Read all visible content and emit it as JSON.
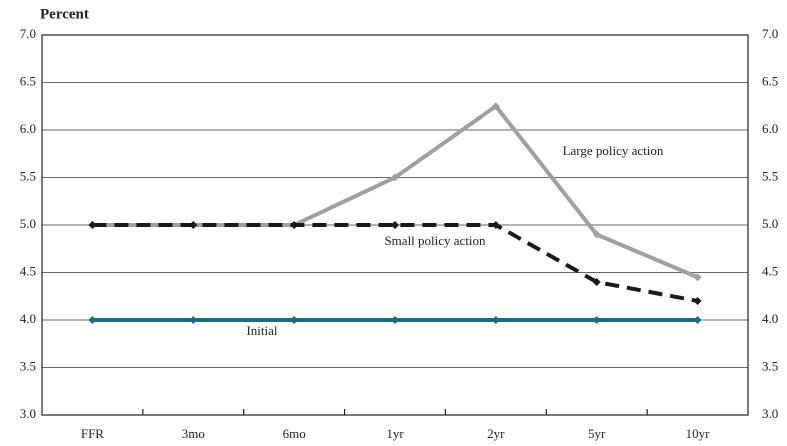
{
  "chart_data": {
    "type": "line",
    "y_label": "Percent",
    "categories": [
      "FFR",
      "3mo",
      "6mo",
      "1yr",
      "2yr",
      "5yr",
      "10yr"
    ],
    "series": [
      {
        "name": "Large policy action",
        "color": "#a0a0a0",
        "dash": false,
        "values": [
          5.0,
          5.0,
          5.0,
          5.5,
          6.25,
          4.9,
          4.45
        ]
      },
      {
        "name": "Small policy action",
        "color": "#1a1a1a",
        "dash": true,
        "values": [
          5.0,
          5.0,
          5.0,
          5.0,
          5.0,
          4.4,
          4.2
        ]
      },
      {
        "name": "Initial",
        "color": "#1d6a8a",
        "dash": false,
        "values": [
          4.0,
          4.0,
          4.0,
          4.0,
          4.0,
          4.0,
          4.0
        ]
      }
    ],
    "ylim": [
      3.0,
      7.0
    ],
    "yticks": [
      {
        "value": 3,
        "label": "3.0"
      },
      {
        "value": 3.5,
        "label": "3.5"
      },
      {
        "value": 4,
        "label": "4.0"
      },
      {
        "value": 4.5,
        "label": "4.5"
      },
      {
        "value": 5,
        "label": "5.0"
      },
      {
        "value": 5.5,
        "label": "5.5"
      },
      {
        "value": 6,
        "label": "6.0"
      },
      {
        "value": 6.5,
        "label": "6.5"
      },
      {
        "value": 7,
        "label": "7.0"
      }
    ],
    "grid": true
  }
}
